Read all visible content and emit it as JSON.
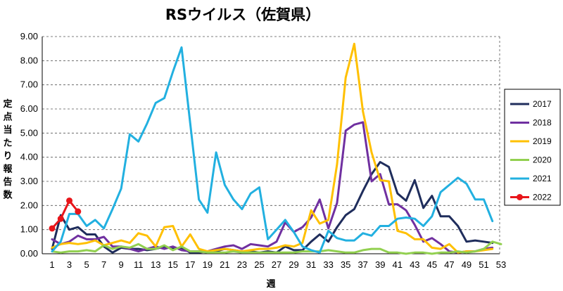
{
  "chart_data": {
    "type": "line",
    "title": "RSウイルス（佐賀県）",
    "xlabel": "週",
    "ylabel": "定点当たり報告数",
    "xlim": [
      1,
      53
    ],
    "ylim": [
      0,
      9
    ],
    "x_ticks": [
      1,
      3,
      5,
      7,
      9,
      11,
      13,
      15,
      17,
      19,
      21,
      23,
      25,
      27,
      29,
      31,
      33,
      35,
      37,
      39,
      41,
      43,
      45,
      47,
      49,
      51,
      53
    ],
    "y_ticks": [
      "0.00",
      "1.00",
      "2.00",
      "3.00",
      "4.00",
      "5.00",
      "6.00",
      "7.00",
      "8.00",
      "9.00"
    ],
    "grid": "horizontal dashed",
    "legend_position": "right",
    "series": [
      {
        "name": "2017",
        "color": "#1f2d5c",
        "values": [
          0.2,
          1.6,
          1.0,
          1.1,
          0.8,
          0.8,
          0.3,
          0.05,
          0.25,
          0.2,
          0.2,
          0.15,
          0.2,
          0.3,
          0.2,
          0.25,
          0.05,
          0.05,
          0.1,
          0.1,
          0.2,
          0.15,
          0.1,
          0.1,
          0.05,
          0.1,
          0.05,
          0.3,
          0.15,
          0.15,
          0.5,
          0.8,
          0.5,
          1.1,
          1.6,
          1.85,
          2.6,
          3.3,
          3.8,
          3.6,
          2.5,
          2.2,
          3.05,
          1.9,
          2.4,
          1.55,
          1.55,
          1.15,
          0.5,
          0.55,
          0.5,
          0.45
        ]
      },
      {
        "name": "2018",
        "color": "#7030a0",
        "values": [
          0.6,
          0.4,
          0.5,
          0.75,
          0.6,
          0.6,
          0.7,
          0.3,
          0.3,
          0.2,
          0.1,
          0.2,
          0.3,
          0.2,
          0.3,
          0.15,
          0.1,
          0.1,
          0.1,
          0.2,
          0.3,
          0.35,
          0.2,
          0.4,
          0.35,
          0.3,
          0.5,
          1.3,
          0.9,
          1.1,
          1.5,
          2.25,
          1.05,
          2.1,
          5.1,
          5.35,
          5.45,
          3.0,
          3.3,
          2.05,
          2.05,
          1.8,
          1.2,
          0.5,
          0.65,
          0.4,
          0.1,
          0.05,
          0.1,
          0.1,
          0.2,
          0.25
        ]
      },
      {
        "name": "2019",
        "color": "#ffc000",
        "values": [
          0.25,
          0.4,
          0.45,
          0.4,
          0.45,
          0.55,
          0.35,
          0.45,
          0.55,
          0.45,
          0.85,
          0.75,
          0.3,
          1.1,
          1.15,
          0.3,
          0.8,
          0.2,
          0.1,
          0.15,
          0.2,
          0.15,
          0.1,
          0.15,
          0.2,
          0.2,
          0.25,
          0.35,
          0.3,
          0.45,
          1.8,
          1.25,
          1.4,
          3.7,
          7.3,
          8.7,
          5.9,
          4.2,
          3.05,
          3.0,
          0.95,
          0.85,
          0.6,
          0.6,
          0.25,
          0.2,
          0.4,
          0.05,
          0.1,
          0.1,
          0.15,
          0.2
        ]
      },
      {
        "name": "2020",
        "color": "#92d050",
        "values": [
          0.1,
          0.05,
          0.1,
          0.1,
          0.15,
          0.1,
          0.35,
          0.2,
          0.3,
          0.25,
          0.4,
          0.2,
          0.2,
          0.35,
          0.15,
          0.3,
          0.1,
          0.1,
          0.05,
          0.05,
          0.05,
          0.1,
          0.05,
          0.05,
          0.05,
          0.05,
          0.05,
          0.05,
          0.05,
          0.1,
          0.1,
          0.1,
          0.15,
          0.1,
          0.05,
          0.05,
          0.15,
          0.2,
          0.2,
          0.05,
          0.05,
          0.0,
          0.05,
          0.05,
          0.0,
          0.05,
          0.05,
          0.1,
          0.05,
          0.1,
          0.2,
          0.5,
          0.4
        ]
      },
      {
        "name": "2021",
        "color": "#22b0e0",
        "values": [
          0.1,
          0.5,
          1.65,
          1.65,
          1.15,
          1.4,
          1.05,
          1.85,
          2.7,
          4.95,
          4.65,
          5.4,
          6.25,
          6.45,
          7.55,
          8.55,
          5.4,
          2.25,
          1.7,
          4.2,
          2.85,
          2.25,
          1.85,
          2.5,
          2.75,
          0.6,
          1.0,
          1.4,
          0.9,
          0.3,
          0.15,
          0.05,
          0.95,
          0.65,
          0.55,
          0.55,
          0.85,
          0.75,
          1.15,
          1.15,
          1.45,
          1.5,
          1.45,
          1.15,
          1.55,
          2.55,
          2.85,
          3.15,
          2.9,
          2.25,
          2.25,
          1.35
        ]
      },
      {
        "name": "2022",
        "color": "#e8151a",
        "marker": "circle",
        "values": [
          1.05,
          1.45,
          2.2,
          1.75
        ]
      }
    ]
  }
}
